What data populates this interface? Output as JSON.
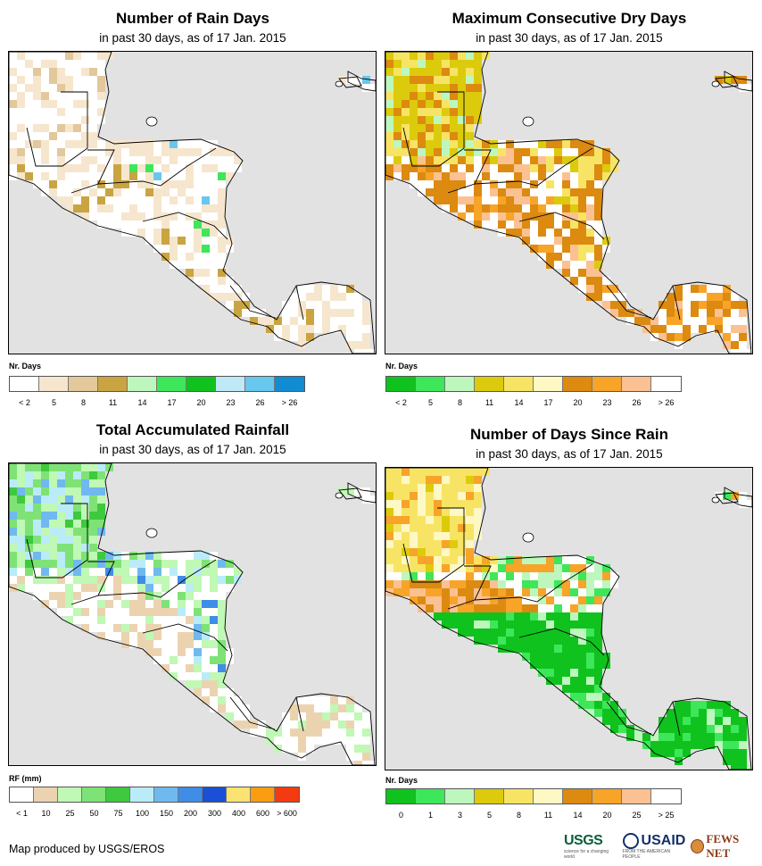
{
  "panels": [
    {
      "title": "Number of Rain Days",
      "subtitle": "in past 30 days, as of 17 Jan. 2015",
      "legend_title": "Nr. Days",
      "legend_colors": [
        "#ffffff",
        "#f6e6cd",
        "#e2c89a",
        "#c9a441",
        "#bdf7bd",
        "#3ee65a",
        "#10c21e",
        "#bfe9f7",
        "#68c7ee",
        "#118bd2"
      ],
      "legend_labels": [
        "< 2",
        "5",
        "8",
        "11",
        "14",
        "17",
        "20",
        "23",
        "26",
        "> 26"
      ],
      "land_pattern": "rain_days"
    },
    {
      "title": "Maximum Consecutive Dry Days",
      "subtitle": "in past 30 days, as of 17 Jan. 2015",
      "legend_title": "Nr. Days",
      "legend_colors": [
        "#10c21e",
        "#3ee65a",
        "#bdf7bd",
        "#dccb0c",
        "#f7e464",
        "#fef8c4",
        "#dc8a10",
        "#f7a428",
        "#fbc193",
        "#ffffff"
      ],
      "legend_labels": [
        "< 2",
        "5",
        "8",
        "11",
        "14",
        "17",
        "20",
        "23",
        "26",
        "> 26"
      ],
      "land_pattern": "dry_days"
    },
    {
      "title": "Total Accumulated Rainfall",
      "subtitle": "in past 30 days, as of 17 Jan. 2015",
      "legend_title": "RF (mm)",
      "legend_colors": [
        "#ffffff",
        "#ecd3b0",
        "#c0f8b5",
        "#7fe276",
        "#3ec93e",
        "#b9ecf7",
        "#6fb9ee",
        "#3f8de6",
        "#1a4fd6",
        "#fbe272",
        "#fb9d10",
        "#f43a10"
      ],
      "legend_labels": [
        "< 1",
        "10",
        "25",
        "50",
        "75",
        "100",
        "150",
        "200",
        "300",
        "400",
        "600",
        "> 600"
      ],
      "land_pattern": "rainfall"
    },
    {
      "title": "Number of Days Since Rain",
      "subtitle": "in past 30 days, as of 17 Jan. 2015",
      "legend_title": "Nr. Days",
      "legend_colors": [
        "#10c21e",
        "#3ee65a",
        "#bdf7bd",
        "#dccb0c",
        "#f7e464",
        "#fef8c4",
        "#dc8a10",
        "#f7a428",
        "#fbc193",
        "#ffffff"
      ],
      "legend_labels": [
        "0",
        "1",
        "3",
        "5",
        "8",
        "11",
        "14",
        "20",
        "25",
        "> 25"
      ],
      "land_pattern": "since_rain"
    }
  ],
  "credit": "Map produced by USGS/EROS",
  "logos": {
    "usgs": "USGS",
    "usgs_tagline": "science for a changing world",
    "usaid": "USAID",
    "usaid_tagline": "FROM THE AMERICAN PEOPLE",
    "fews": "FEWS NET"
  }
}
